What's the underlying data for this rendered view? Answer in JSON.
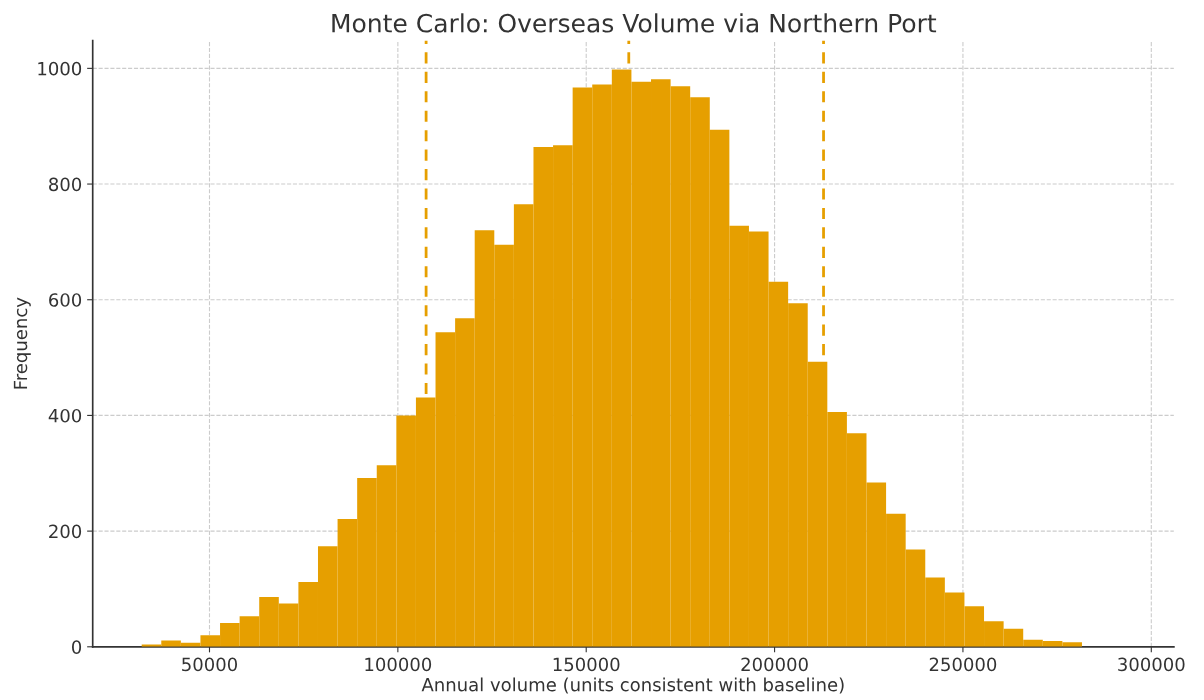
{
  "chart_data": {
    "type": "histogram",
    "title": "Monte Carlo: Overseas Volume via Northern Port",
    "xlabel": "Annual volume (units consistent with baseline)",
    "ylabel": "Frequency",
    "bins": [
      32000,
      37200,
      42400,
      47600,
      52800,
      58000,
      63200,
      68400,
      73600,
      78800,
      84000,
      89200,
      94400,
      99600,
      104800,
      110000,
      115200,
      120400,
      125600,
      130800,
      136000,
      141200,
      146400,
      151600,
      156800,
      162000,
      167200,
      172400,
      177600,
      182800,
      188000,
      193200,
      198400,
      203600,
      208800,
      214000,
      219200,
      224400,
      229600,
      234800,
      240000,
      245200,
      250400,
      255600,
      260800,
      266000,
      271200,
      276400,
      281600
    ],
    "values": [
      4,
      11,
      7,
      20,
      41,
      53,
      86,
      75,
      112,
      174,
      221,
      292,
      314,
      400,
      431,
      544,
      568,
      720,
      695,
      765,
      864,
      867,
      967,
      972,
      998,
      977,
      981,
      969,
      950,
      894,
      728,
      718,
      631,
      594,
      493,
      406,
      369,
      284,
      230,
      168,
      120,
      94,
      70,
      44,
      31,
      12,
      10,
      8
    ],
    "color": "#e69f00",
    "xlim": [
      19000,
      306000
    ],
    "xticks": [
      50000,
      100000,
      150000,
      200000,
      250000,
      300000
    ],
    "ylim": [
      0,
      1048
    ],
    "yticks": [
      0,
      200,
      400,
      600,
      800,
      1000
    ],
    "grid": true,
    "ref_lines": [
      {
        "axis": "x",
        "value": 107500,
        "color": "#e69f00",
        "line_style": "dashed"
      },
      {
        "axis": "x",
        "value": 161300,
        "color": "#e69f00",
        "line_style": "dashed"
      },
      {
        "axis": "x",
        "value": 213000,
        "color": "#e69f00",
        "line_style": "dashed"
      }
    ]
  }
}
